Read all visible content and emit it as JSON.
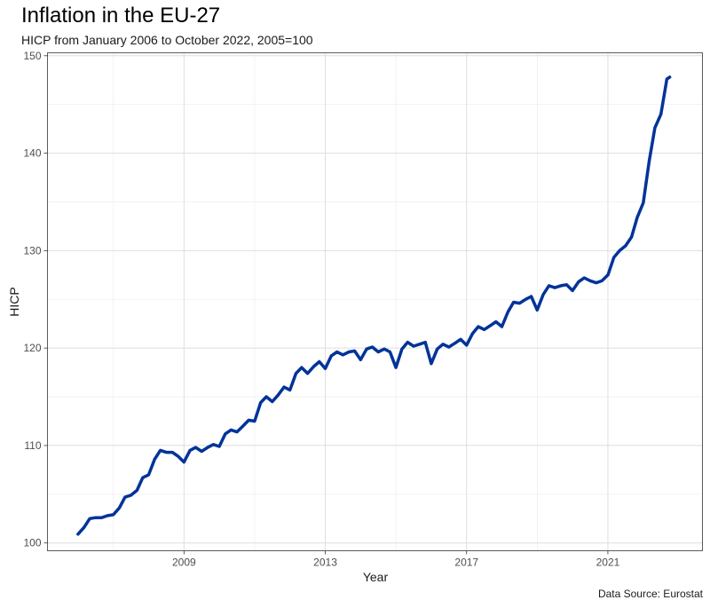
{
  "chart_data": {
    "type": "line",
    "title": "Inflation in the EU-27",
    "subtitle": "HICP from January 2006 to October 2022, 2005=100",
    "xlabel": "Year",
    "ylabel": "HICP",
    "caption": "Data Source: Eurostat",
    "xlim": [
      2006.0,
      2022.8
    ],
    "ylim": [
      100,
      150
    ],
    "x_ticks": [
      2009,
      2013,
      2017,
      2021
    ],
    "y_ticks": [
      100,
      110,
      120,
      130,
      140,
      150
    ],
    "grid": true,
    "legend": "none",
    "line_color": "#003399",
    "series": [
      {
        "x": [
          2006.0,
          2006.17,
          2006.33,
          2006.5,
          2006.67,
          2006.83,
          2007.0,
          2007.17,
          2007.33,
          2007.5,
          2007.67,
          2007.83,
          2008.0,
          2008.17,
          2008.33,
          2008.5,
          2008.67,
          2008.83,
          2009.0,
          2009.17,
          2009.33,
          2009.5,
          2009.67,
          2009.83,
          2010.0,
          2010.17,
          2010.33,
          2010.5,
          2010.67,
          2010.83,
          2011.0,
          2011.17,
          2011.33,
          2011.5,
          2011.67,
          2011.83,
          2012.0,
          2012.17,
          2012.33,
          2012.5,
          2012.67,
          2012.83,
          2013.0,
          2013.17,
          2013.33,
          2013.5,
          2013.67,
          2013.83,
          2014.0,
          2014.17,
          2014.33,
          2014.5,
          2014.67,
          2014.83,
          2015.0,
          2015.17,
          2015.33,
          2015.5,
          2015.67,
          2015.83,
          2016.0,
          2016.17,
          2016.33,
          2016.5,
          2016.67,
          2016.83,
          2017.0,
          2017.17,
          2017.33,
          2017.5,
          2017.67,
          2017.83,
          2018.0,
          2018.17,
          2018.33,
          2018.5,
          2018.67,
          2018.83,
          2019.0,
          2019.17,
          2019.33,
          2019.5,
          2019.67,
          2019.83,
          2020.0,
          2020.17,
          2020.33,
          2020.5,
          2020.67,
          2020.83,
          2021.0,
          2021.17,
          2021.33,
          2021.5,
          2021.67,
          2021.83,
          2022.0,
          2022.17,
          2022.33,
          2022.5,
          2022.67,
          2022.75
        ],
        "y": [
          100.9,
          101.6,
          102.5,
          102.6,
          102.6,
          102.8,
          102.9,
          103.6,
          104.7,
          104.9,
          105.4,
          106.7,
          107.0,
          108.6,
          109.5,
          109.3,
          109.3,
          108.9,
          108.3,
          109.5,
          109.8,
          109.4,
          109.8,
          110.1,
          109.9,
          111.2,
          111.6,
          111.4,
          112.0,
          112.6,
          112.5,
          114.4,
          115.0,
          114.5,
          115.2,
          116.0,
          115.7,
          117.4,
          118.0,
          117.4,
          118.1,
          118.6,
          117.9,
          119.2,
          119.6,
          119.3,
          119.6,
          119.7,
          118.8,
          119.9,
          120.1,
          119.6,
          119.9,
          119.6,
          118.0,
          119.9,
          120.6,
          120.2,
          120.4,
          120.6,
          118.4,
          119.9,
          120.4,
          120.1,
          120.5,
          120.9,
          120.3,
          121.5,
          122.2,
          121.9,
          122.3,
          122.7,
          122.2,
          123.7,
          124.7,
          124.6,
          125.0,
          125.3,
          123.9,
          125.5,
          126.4,
          126.2,
          126.4,
          126.5,
          125.9,
          126.8,
          127.2,
          126.9,
          126.7,
          126.9,
          127.5,
          129.3,
          130.0,
          130.5,
          131.4,
          133.4,
          134.9,
          139.2,
          142.6,
          144.0,
          147.6,
          147.8
        ]
      }
    ]
  }
}
